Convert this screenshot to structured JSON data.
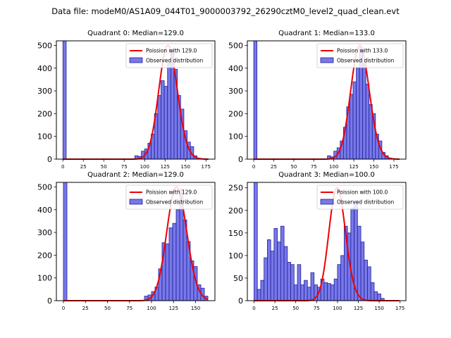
{
  "figure": {
    "suptitle": "Data file: modeM0/AS1A09_044T01_9000003792_26290cztM0_level2_quad_clean.evt"
  },
  "colors": {
    "hist_fill": "#7878e8",
    "hist_edge": "#2020a0",
    "poisson": "#ee0000"
  },
  "chart_data": [
    {
      "type": "bar",
      "title": "Quadrant 0: Median=129.0",
      "xlabel": "",
      "ylabel": "",
      "xlim": [
        -8,
        186
      ],
      "ylim": [
        0,
        520
      ],
      "xticks": [
        0,
        25,
        50,
        75,
        100,
        125,
        150,
        175
      ],
      "yticks": [
        0,
        100,
        200,
        300,
        400,
        500
      ],
      "bin_width": 4,
      "bins": [
        {
          "x": 0,
          "y": 520
        },
        {
          "x": 88,
          "y": 15
        },
        {
          "x": 92,
          "y": 12
        },
        {
          "x": 96,
          "y": 35
        },
        {
          "x": 100,
          "y": 45
        },
        {
          "x": 104,
          "y": 70
        },
        {
          "x": 108,
          "y": 110
        },
        {
          "x": 112,
          "y": 200
        },
        {
          "x": 116,
          "y": 280
        },
        {
          "x": 120,
          "y": 345
        },
        {
          "x": 124,
          "y": 320
        },
        {
          "x": 128,
          "y": 420
        },
        {
          "x": 132,
          "y": 480
        },
        {
          "x": 136,
          "y": 395
        },
        {
          "x": 140,
          "y": 280
        },
        {
          "x": 144,
          "y": 220
        },
        {
          "x": 148,
          "y": 125
        },
        {
          "x": 152,
          "y": 75
        },
        {
          "x": 156,
          "y": 55
        },
        {
          "x": 160,
          "y": 15
        },
        {
          "x": 164,
          "y": 5
        }
      ],
      "poisson_mean": 129.0,
      "poisson_scale": 500,
      "legend": {
        "position": "upper-right",
        "poisson_label": "Poission with 129.0",
        "observed_label": "Observed distribution"
      }
    },
    {
      "type": "bar",
      "title": "Quadrant 1: Median=133.0",
      "xlabel": "",
      "ylabel": "",
      "xlim": [
        -8,
        190
      ],
      "ylim": [
        0,
        520
      ],
      "xticks": [
        0,
        25,
        50,
        75,
        100,
        125,
        150,
        175
      ],
      "yticks": [
        0,
        100,
        200,
        300,
        400,
        500
      ],
      "bin_width": 4,
      "bins": [
        {
          "x": 0,
          "y": 520
        },
        {
          "x": 92,
          "y": 15
        },
        {
          "x": 96,
          "y": 10
        },
        {
          "x": 100,
          "y": 35
        },
        {
          "x": 104,
          "y": 50
        },
        {
          "x": 108,
          "y": 80
        },
        {
          "x": 112,
          "y": 140
        },
        {
          "x": 116,
          "y": 230
        },
        {
          "x": 120,
          "y": 285
        },
        {
          "x": 124,
          "y": 340
        },
        {
          "x": 128,
          "y": 400
        },
        {
          "x": 132,
          "y": 490
        },
        {
          "x": 136,
          "y": 420
        },
        {
          "x": 140,
          "y": 330
        },
        {
          "x": 144,
          "y": 240
        },
        {
          "x": 148,
          "y": 200
        },
        {
          "x": 152,
          "y": 110
        },
        {
          "x": 156,
          "y": 80
        },
        {
          "x": 160,
          "y": 30
        },
        {
          "x": 164,
          "y": 15
        },
        {
          "x": 168,
          "y": 5
        }
      ],
      "poisson_mean": 133.0,
      "poisson_scale": 500,
      "legend": {
        "position": "upper-right",
        "poisson_label": "Poission with 133.0",
        "observed_label": "Observed distribution"
      }
    },
    {
      "type": "bar",
      "title": "Quadrant 2: Median=129.0",
      "xlabel": "",
      "ylabel": "",
      "xlim": [
        -8,
        172
      ],
      "ylim": [
        0,
        520
      ],
      "xticks": [
        0,
        25,
        50,
        75,
        100,
        125,
        150
      ],
      "yticks": [
        0,
        100,
        200,
        300,
        400,
        500
      ],
      "bin_width": 4,
      "bins": [
        {
          "x": 0,
          "y": 520
        },
        {
          "x": 92,
          "y": 20
        },
        {
          "x": 96,
          "y": 25
        },
        {
          "x": 100,
          "y": 40
        },
        {
          "x": 104,
          "y": 60
        },
        {
          "x": 108,
          "y": 140
        },
        {
          "x": 112,
          "y": 255
        },
        {
          "x": 116,
          "y": 250
        },
        {
          "x": 120,
          "y": 320
        },
        {
          "x": 124,
          "y": 340
        },
        {
          "x": 128,
          "y": 400
        },
        {
          "x": 132,
          "y": 490
        },
        {
          "x": 136,
          "y": 355
        },
        {
          "x": 140,
          "y": 260
        },
        {
          "x": 144,
          "y": 175
        },
        {
          "x": 148,
          "y": 150
        },
        {
          "x": 152,
          "y": 70
        },
        {
          "x": 156,
          "y": 55
        },
        {
          "x": 160,
          "y": 20
        }
      ],
      "poisson_mean": 129.0,
      "poisson_scale": 500,
      "legend": {
        "position": "upper-right",
        "poisson_label": "Poission with 129.0",
        "observed_label": "Observed distribution"
      }
    },
    {
      "type": "bar",
      "title": "Quadrant 3: Median=100.0",
      "xlabel": "",
      "ylabel": "",
      "xlim": [
        -8,
        182
      ],
      "ylim": [
        0,
        262
      ],
      "xticks": [
        0,
        25,
        50,
        75,
        100,
        125,
        150,
        175
      ],
      "yticks": [
        0,
        50,
        100,
        150,
        200,
        250
      ],
      "bin_width": 4,
      "bins": [
        {
          "x": 0,
          "y": 262
        },
        {
          "x": 4,
          "y": 25
        },
        {
          "x": 8,
          "y": 45
        },
        {
          "x": 12,
          "y": 95
        },
        {
          "x": 16,
          "y": 135
        },
        {
          "x": 20,
          "y": 110
        },
        {
          "x": 24,
          "y": 160
        },
        {
          "x": 28,
          "y": 130
        },
        {
          "x": 32,
          "y": 165
        },
        {
          "x": 36,
          "y": 120
        },
        {
          "x": 40,
          "y": 85
        },
        {
          "x": 44,
          "y": 80
        },
        {
          "x": 48,
          "y": 35
        },
        {
          "x": 52,
          "y": 80
        },
        {
          "x": 56,
          "y": 35
        },
        {
          "x": 60,
          "y": 45
        },
        {
          "x": 64,
          "y": 30
        },
        {
          "x": 68,
          "y": 62
        },
        {
          "x": 72,
          "y": 35
        },
        {
          "x": 76,
          "y": 30
        },
        {
          "x": 80,
          "y": 48
        },
        {
          "x": 84,
          "y": 40
        },
        {
          "x": 88,
          "y": 38
        },
        {
          "x": 92,
          "y": 35
        },
        {
          "x": 96,
          "y": 48
        },
        {
          "x": 100,
          "y": 80
        },
        {
          "x": 104,
          "y": 100
        },
        {
          "x": 108,
          "y": 165
        },
        {
          "x": 112,
          "y": 150
        },
        {
          "x": 116,
          "y": 205
        },
        {
          "x": 120,
          "y": 220
        },
        {
          "x": 124,
          "y": 165
        },
        {
          "x": 128,
          "y": 130
        },
        {
          "x": 132,
          "y": 90
        },
        {
          "x": 136,
          "y": 75
        },
        {
          "x": 140,
          "y": 40
        },
        {
          "x": 144,
          "y": 20
        },
        {
          "x": 148,
          "y": 15
        },
        {
          "x": 152,
          "y": 5
        }
      ],
      "poisson_mean": 100.0,
      "poisson_scale": 250,
      "legend": {
        "position": "upper-right",
        "poisson_label": "Poission with 100.0",
        "observed_label": "Observed distribution"
      }
    }
  ]
}
